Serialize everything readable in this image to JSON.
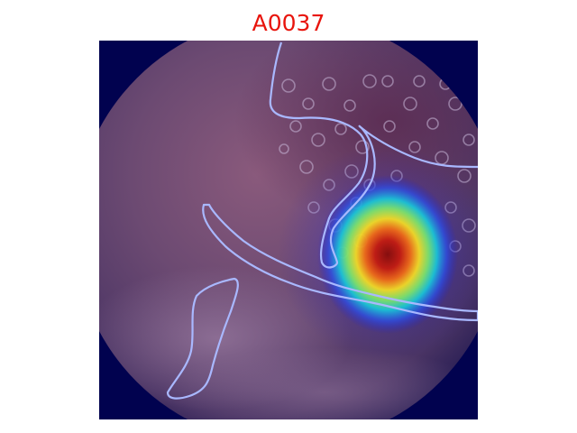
{
  "figure": {
    "title": "A0037"
  },
  "colors": {
    "title": "#e8140c",
    "frame_background": "#01024f",
    "contour": "#a9b8ff",
    "heatmap_peak": "#8a0a00"
  },
  "image": {
    "kind": "endoscopic-view-with-heatmap-overlay",
    "overlay": "attention-heatmap",
    "contour_count": 3
  }
}
